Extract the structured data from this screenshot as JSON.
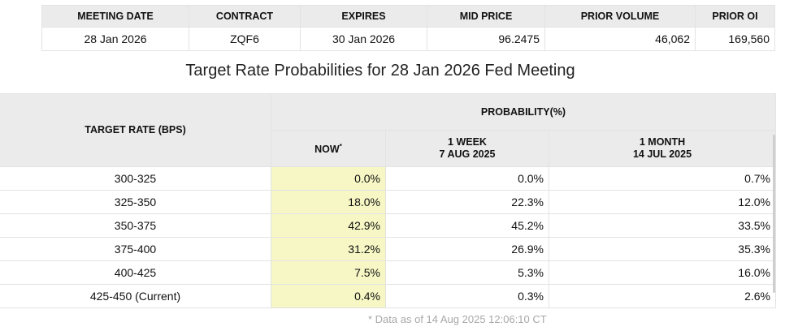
{
  "summary": {
    "headers": [
      "MEETING DATE",
      "CONTRACT",
      "EXPIRES",
      "MID PRICE",
      "PRIOR VOLUME",
      "PRIOR OI"
    ],
    "row": {
      "meeting_date": "28 Jan 2026",
      "contract": "ZQF6",
      "expires": "30 Jan 2026",
      "mid_price": "96.2475",
      "prior_volume": "46,062",
      "prior_oi": "169,560"
    }
  },
  "title": "Target Rate Probabilities for 28 Jan 2026 Fed Meeting",
  "probabilities": {
    "target_rate_header": "TARGET RATE (BPS)",
    "probability_header": "PROBABILITY(%)",
    "now_header": "NOW",
    "now_marker": "*",
    "week_header": "1 WEEK",
    "week_date": "7 AUG 2025",
    "month_header": "1 MONTH",
    "month_date": "14 JUL 2025",
    "rows": [
      {
        "rate": "300-325",
        "now": "0.0%",
        "week": "0.0%",
        "month": "0.7%"
      },
      {
        "rate": "325-350",
        "now": "18.0%",
        "week": "22.3%",
        "month": "12.0%"
      },
      {
        "rate": "350-375",
        "now": "42.9%",
        "week": "45.2%",
        "month": "33.5%"
      },
      {
        "rate": "375-400",
        "now": "31.2%",
        "week": "26.9%",
        "month": "35.3%"
      },
      {
        "rate": "400-425",
        "now": "7.5%",
        "week": "5.3%",
        "month": "16.0%"
      },
      {
        "rate": "425-450 (Current)",
        "now": "0.4%",
        "week": "0.3%",
        "month": "2.6%"
      }
    ]
  },
  "footnote": "* Data as of 14 Aug 2025 12:06:10 CT",
  "colors": {
    "header_bg": "#ebebeb",
    "now_highlight": "#f6f7c4",
    "footnote_text": "#a8a8a8"
  }
}
